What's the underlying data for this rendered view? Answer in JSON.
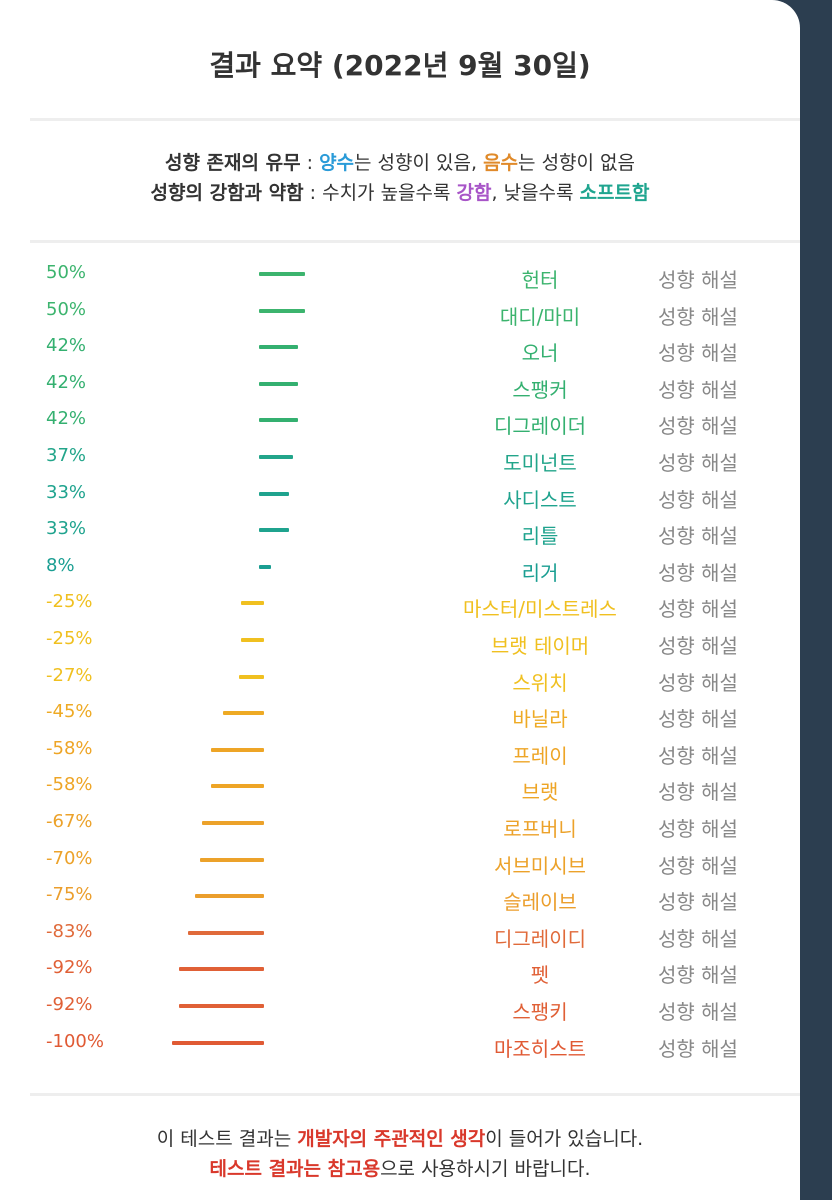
{
  "header": {
    "title": "결과 요약 (2022년 9월 30일)"
  },
  "legend": {
    "line1": {
      "label": "성향 존재의 유무",
      "sep": " : ",
      "positive": "양수",
      "mid": "는 성향이 있음, ",
      "negative": "음수",
      "end": "는 성향이 없음"
    },
    "line2": {
      "label": "성향의 강함과 약함",
      "sep": " : 수치가 높을수록 ",
      "strong": "강함",
      "mid": ", 낮을수록 ",
      "soft": "소프트함"
    }
  },
  "colors": {
    "positive": "#2a9bd8",
    "negative": "#e08a2a",
    "strong": "#a855c8",
    "soft": "#1fa58f"
  },
  "explain_label": "성향 해설",
  "chart_data": {
    "type": "bar",
    "xlim": [
      -100,
      100
    ],
    "rows": [
      {
        "name": "헌터",
        "pct": "50%",
        "value": 50,
        "color": "#3cb46e"
      },
      {
        "name": "대디/마미",
        "pct": "50%",
        "value": 50,
        "color": "#3cb46e"
      },
      {
        "name": "오너",
        "pct": "42%",
        "value": 42,
        "color": "#34b070"
      },
      {
        "name": "스팽커",
        "pct": "42%",
        "value": 42,
        "color": "#34b070"
      },
      {
        "name": "디그레이더",
        "pct": "42%",
        "value": 42,
        "color": "#34b070"
      },
      {
        "name": "도미넌트",
        "pct": "37%",
        "value": 37,
        "color": "#22a58a"
      },
      {
        "name": "사디스트",
        "pct": "33%",
        "value": 33,
        "color": "#1fa38e"
      },
      {
        "name": "리틀",
        "pct": "33%",
        "value": 33,
        "color": "#1fa38e"
      },
      {
        "name": "리거",
        "pct": "8%",
        "value": 8,
        "color": "#1a9e92"
      },
      {
        "name": "마스터/미스트레스",
        "pct": "-25%",
        "value": -25,
        "color": "#f0c020"
      },
      {
        "name": "브랫 테이머",
        "pct": "-25%",
        "value": -25,
        "color": "#f0c020"
      },
      {
        "name": "스위치",
        "pct": "-27%",
        "value": -27,
        "color": "#f0c020"
      },
      {
        "name": "바닐라",
        "pct": "-45%",
        "value": -45,
        "color": "#eeaa24"
      },
      {
        "name": "프레이",
        "pct": "-58%",
        "value": -58,
        "color": "#eea526"
      },
      {
        "name": "브랫",
        "pct": "-58%",
        "value": -58,
        "color": "#eea526"
      },
      {
        "name": "로프버니",
        "pct": "-67%",
        "value": -67,
        "color": "#eca22a"
      },
      {
        "name": "서브미시브",
        "pct": "-70%",
        "value": -70,
        "color": "#eca22a"
      },
      {
        "name": "슬레이브",
        "pct": "-75%",
        "value": -75,
        "color": "#eb9e2c"
      },
      {
        "name": "디그레이디",
        "pct": "-83%",
        "value": -83,
        "color": "#e06a3a"
      },
      {
        "name": "펫",
        "pct": "-92%",
        "value": -92,
        "color": "#e06036"
      },
      {
        "name": "스팽키",
        "pct": "-92%",
        "value": -92,
        "color": "#e06036"
      },
      {
        "name": "마조히스트",
        "pct": "-100%",
        "value": -100,
        "color": "#e05a34"
      }
    ]
  },
  "footer": {
    "line1_a": "이 테스트 결과는 ",
    "line1_b": "개발자의 주관적인 생각",
    "line1_c": "이 들어가 있습니다.",
    "line2_a": "테스트 결과는 참고용",
    "line2_b": "으로 사용하시기 바랍니다."
  }
}
